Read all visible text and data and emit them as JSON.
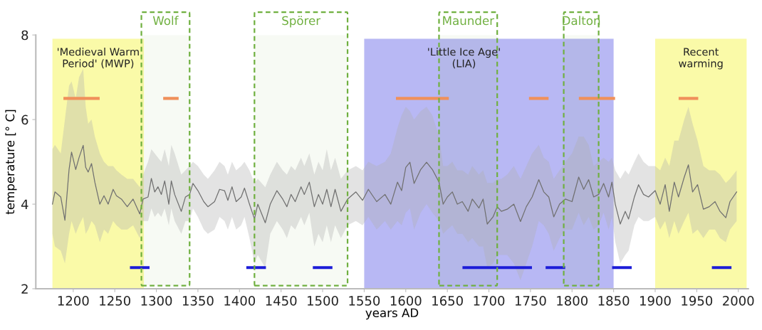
{
  "chart_data": {
    "type": "line",
    "xlabel": "years AD",
    "ylabel": "temperature [° C]",
    "xlim": [
      1155,
      2012
    ],
    "ylim": [
      2,
      8
    ],
    "xticks": [
      1200,
      1250,
      1300,
      1350,
      1400,
      1450,
      1500,
      1550,
      1600,
      1650,
      1700,
      1750,
      1800,
      1850,
      1900,
      1950,
      2000
    ],
    "yticks": [
      2,
      4,
      6,
      8
    ],
    "grid": false,
    "bands": [
      {
        "axis": "x",
        "from": 1175,
        "to": 1285,
        "label": "'Medieval Warm\nPeriod' (MWP)",
        "color": "#fafaa8"
      },
      {
        "axis": "x",
        "from": 1550,
        "to": 1850,
        "label": "'Little Ice Age'\n(LIA)",
        "color": "#b8b8f4"
      },
      {
        "axis": "x",
        "from": 1900,
        "to": 2010,
        "label": "Recent\nwarming",
        "color": "#fafaa8"
      },
      {
        "axis": "x",
        "from": 1282,
        "to": 1340,
        "label": "Wolf",
        "color": "#70b040"
      },
      {
        "axis": "x",
        "from": 1418,
        "to": 1530,
        "label": "Spörer",
        "color": "#70b040"
      },
      {
        "axis": "x",
        "from": 1640,
        "to": 1710,
        "label": "Maunder",
        "color": "#70b040"
      },
      {
        "axis": "x",
        "from": 1790,
        "to": 1832,
        "label": "Dalton",
        "color": "#70b040"
      }
    ],
    "series": [
      {
        "color": "#707070",
        "x": [
          1175,
          1178,
          1185,
          1190,
          1195,
          1198,
          1203,
          1207,
          1212,
          1215,
          1218,
          1222,
          1226,
          1232,
          1237,
          1242,
          1248,
          1252,
          1258,
          1265,
          1272,
          1280,
          1284,
          1290,
          1294,
          1298,
          1302,
          1306,
          1310,
          1315,
          1318,
          1322,
          1330,
          1335,
          1340,
          1344,
          1350,
          1357,
          1362,
          1370,
          1376,
          1382,
          1386,
          1391,
          1396,
          1402,
          1406,
          1412,
          1418,
          1422,
          1431,
          1437,
          1445,
          1452,
          1457,
          1462,
          1467,
          1474,
          1478,
          1484,
          1490,
          1495,
          1500,
          1505,
          1510,
          1515,
          1522,
          1530,
          1540,
          1548,
          1555,
          1565,
          1575,
          1582,
          1590,
          1595,
          1600,
          1605,
          1610,
          1618,
          1625,
          1632,
          1640,
          1645,
          1650,
          1656,
          1662,
          1668,
          1675,
          1680,
          1688,
          1693,
          1698,
          1705,
          1710,
          1715,
          1722,
          1730,
          1738,
          1745,
          1752,
          1760,
          1766,
          1772,
          1778,
          1785,
          1792,
          1800,
          1808,
          1814,
          1820,
          1826,
          1832,
          1838,
          1844,
          1848,
          1852,
          1858,
          1864,
          1868,
          1875,
          1880,
          1886,
          1892,
          1900,
          1906,
          1912,
          1917,
          1923,
          1928,
          1935,
          1940,
          1945,
          1951,
          1958,
          1965,
          1972,
          1978,
          1985,
          1990,
          1998
        ],
        "values": [
          4.0,
          4.29,
          4.17,
          3.62,
          4.82,
          5.23,
          4.82,
          5.1,
          5.39,
          4.87,
          4.76,
          4.96,
          4.52,
          4.0,
          4.2,
          4.0,
          4.35,
          4.2,
          4.12,
          3.94,
          4.12,
          3.77,
          4.12,
          4.17,
          4.61,
          4.29,
          4.41,
          4.23,
          4.55,
          4.0,
          4.55,
          4.23,
          3.83,
          4.17,
          4.23,
          4.49,
          4.32,
          4.06,
          3.94,
          4.06,
          4.35,
          4.32,
          4.09,
          4.41,
          4.06,
          4.17,
          4.38,
          4.0,
          3.65,
          4.0,
          3.56,
          4.0,
          4.32,
          4.12,
          3.94,
          4.23,
          4.06,
          4.41,
          4.23,
          4.52,
          3.94,
          4.23,
          4.0,
          4.35,
          3.94,
          4.35,
          3.83,
          4.12,
          4.29,
          4.09,
          4.35,
          4.06,
          4.23,
          4.0,
          4.52,
          4.32,
          4.87,
          4.99,
          4.49,
          4.82,
          4.99,
          4.82,
          4.52,
          4.0,
          4.17,
          4.29,
          4.0,
          4.06,
          3.83,
          4.12,
          3.91,
          4.12,
          3.53,
          3.7,
          3.94,
          3.83,
          3.88,
          4.0,
          3.59,
          3.94,
          4.17,
          4.58,
          4.29,
          4.17,
          3.7,
          4.0,
          4.12,
          4.06,
          4.64,
          4.35,
          4.58,
          4.17,
          4.23,
          4.49,
          4.17,
          4.52,
          4.0,
          3.53,
          3.83,
          3.65,
          4.17,
          4.46,
          4.23,
          4.17,
          4.32,
          4.0,
          4.46,
          3.83,
          4.52,
          4.17,
          4.64,
          4.93,
          4.29,
          4.46,
          3.88,
          3.94,
          4.06,
          3.83,
          3.68,
          4.06,
          4.29
        ],
        "upper": [
          5.3,
          5.4,
          5.2,
          6.0,
          6.8,
          6.9,
          6.5,
          7.0,
          7.2,
          6.3,
          5.9,
          6.0,
          5.6,
          5.2,
          5.0,
          4.9,
          4.9,
          4.8,
          4.7,
          4.6,
          4.6,
          4.4,
          4.7,
          5.0,
          5.3,
          5.2,
          5.1,
          5.0,
          5.3,
          4.9,
          5.4,
          5.2,
          4.7,
          4.8,
          4.9,
          5.0,
          4.9,
          4.7,
          4.6,
          4.8,
          5.0,
          4.9,
          4.7,
          5.0,
          4.8,
          4.9,
          5.0,
          4.8,
          4.5,
          4.6,
          4.4,
          4.7,
          5.0,
          4.8,
          4.7,
          4.9,
          4.8,
          5.1,
          4.9,
          5.2,
          4.7,
          5.0,
          4.8,
          5.3,
          4.8,
          5.1,
          4.6,
          4.8,
          4.9,
          4.8,
          5.0,
          4.9,
          5.0,
          5.2,
          5.8,
          6.1,
          6.3,
          6.2,
          6.0,
          6.2,
          6.3,
          6.1,
          5.6,
          4.9,
          4.9,
          5.0,
          4.8,
          4.8,
          4.7,
          4.9,
          4.7,
          4.8,
          4.5,
          4.5,
          4.6,
          4.6,
          4.7,
          4.9,
          4.6,
          4.9,
          5.2,
          5.4,
          5.1,
          5.0,
          4.6,
          4.8,
          5.0,
          5.2,
          5.6,
          5.6,
          5.4,
          4.9,
          5.0,
          5.1,
          5.0,
          5.1,
          4.8,
          4.6,
          4.8,
          4.7,
          5.0,
          5.2,
          5.0,
          4.9,
          4.9,
          4.8,
          5.1,
          4.9,
          5.5,
          5.5,
          6.0,
          6.3,
          5.9,
          5.5,
          4.9,
          4.8,
          4.8,
          4.7,
          4.5,
          4.6,
          4.8
        ],
        "lower": [
          3.3,
          3.0,
          2.9,
          2.6,
          3.3,
          3.6,
          3.3,
          3.5,
          3.7,
          3.3,
          3.4,
          3.6,
          3.5,
          3.1,
          3.4,
          3.3,
          3.6,
          3.5,
          3.4,
          3.4,
          3.5,
          3.2,
          3.6,
          3.6,
          3.9,
          3.7,
          3.8,
          3.7,
          3.9,
          3.5,
          3.9,
          3.6,
          3.3,
          3.6,
          3.6,
          3.9,
          3.7,
          3.4,
          3.3,
          3.4,
          3.7,
          3.6,
          3.4,
          3.7,
          3.4,
          3.5,
          3.7,
          3.2,
          2.6,
          2.8,
          2.5,
          3.3,
          3.6,
          3.4,
          3.2,
          3.5,
          3.4,
          3.7,
          3.5,
          3.8,
          3.0,
          3.3,
          3.1,
          3.5,
          3.1,
          3.5,
          3.2,
          3.5,
          3.6,
          3.5,
          3.7,
          3.4,
          3.6,
          3.4,
          3.6,
          3.5,
          3.8,
          3.9,
          3.4,
          3.8,
          4.0,
          3.8,
          3.6,
          3.3,
          3.4,
          3.5,
          3.3,
          3.3,
          3.1,
          3.2,
          3.0,
          3.0,
          2.5,
          2.6,
          2.8,
          2.8,
          2.8,
          2.6,
          2.2,
          2.6,
          3.0,
          3.6,
          3.5,
          3.3,
          2.9,
          3.2,
          3.4,
          3.4,
          3.8,
          3.5,
          3.7,
          3.4,
          3.5,
          3.8,
          3.4,
          3.7,
          3.1,
          2.6,
          2.8,
          2.9,
          3.5,
          3.7,
          3.6,
          3.6,
          3.7,
          3.4,
          3.6,
          3.2,
          3.6,
          3.3,
          3.6,
          3.8,
          3.3,
          3.4,
          3.2,
          3.4,
          3.4,
          3.2,
          3.1,
          3.4,
          3.6
        ]
      },
      {
        "color": "#f0905a",
        "x": [
          1190,
          1230,
          null,
          1310,
          1325,
          null,
          1590,
          1650,
          null,
          1750,
          1770,
          null,
          1810,
          1850,
          null,
          1930,
          1950
        ],
        "values": [
          6.5,
          6.5,
          null,
          6.5,
          6.5,
          null,
          6.5,
          6.5,
          null,
          6.5,
          6.5,
          null,
          6.5,
          6.5,
          null,
          6.5,
          6.5
        ]
      },
      {
        "color": "#1c1cd8",
        "x": [
          1270,
          1290,
          null,
          1410,
          1430,
          null,
          1490,
          1510,
          null,
          1670,
          1750,
          null,
          1770,
          1790,
          null,
          1850,
          1870,
          null,
          1970,
          1990
        ],
        "values": [
          2.5,
          2.5,
          null,
          2.5,
          2.5,
          null,
          2.5,
          2.5,
          null,
          2.5,
          2.5,
          null,
          2.5,
          2.5,
          null,
          2.5,
          2.5,
          null,
          2.5,
          2.5
        ]
      }
    ]
  }
}
